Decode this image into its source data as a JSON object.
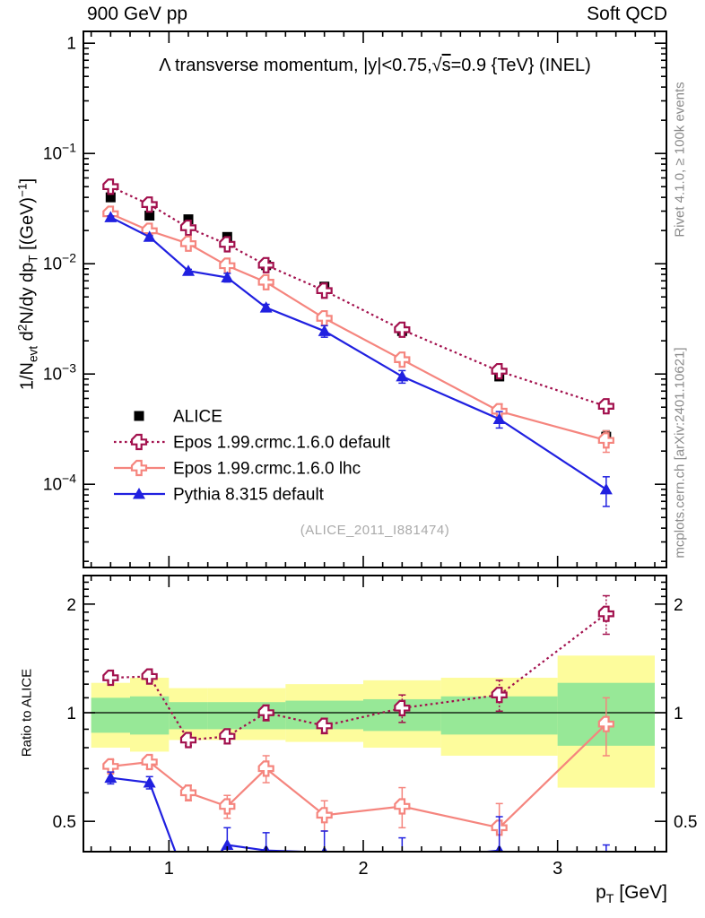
{
  "header": {
    "left": "900 GeV pp",
    "right": "Soft QCD"
  },
  "side_notes": {
    "top": "Rivet 4.1.0, ≥ 100k events",
    "bottom": "mcplots.cern.ch [arXiv:2401.10621]"
  },
  "watermark": "(ALICE_2011_I881474)",
  "titles": {
    "plot": [
      {
        "t": "Λ transverse momentum, |y|<0.75,"
      },
      {
        "t": "√"
      },
      {
        "t": "s",
        "over": true
      },
      {
        "t": "=0.9 {TeV} (INEL)"
      }
    ],
    "y_axis": [
      {
        "t": "1/N"
      },
      {
        "t": "evt",
        "sub": true
      },
      {
        "t": "  d"
      },
      {
        "t": "2",
        "sup": true
      },
      {
        "t": "N/dy dp"
      },
      {
        "t": "T",
        "sub": true
      },
      {
        "t": " [(GeV)"
      },
      {
        "t": "−1",
        "sup": true
      },
      {
        "t": "]"
      }
    ],
    "x_axis": [
      {
        "t": "p"
      },
      {
        "t": "T",
        "sub": true
      },
      {
        "t": " [GeV]"
      }
    ],
    "ratio_y_axis": "Ratio to ALICE"
  },
  "chart_data": {
    "type": "line",
    "title": "Λ transverse momentum, |y|<0.75, √s=0.9 TeV (INEL)",
    "xlabel": "p_T [GeV]",
    "ylabel": "1/N_evt d2N/dy dp_T [(GeV)^-1]",
    "ratio_ylabel": "Ratio to ALICE",
    "x_range": [
      0.56,
      3.56
    ],
    "main_y_range": [
      1.76e-05,
      1.28
    ],
    "ratio_y_range": [
      0.412,
      2.4
    ],
    "x_major_ticks": [
      1,
      2,
      3
    ],
    "x_tick_labels": [
      "1",
      "2",
      "3"
    ],
    "x_minor_from": 0.6,
    "x_minor_to": 3.5,
    "x_minor_step": 0.1,
    "main_y_major_ticks": [
      {
        "v": 1,
        "label": "1"
      },
      {
        "v": 0.1,
        "label": "10^-1"
      },
      {
        "v": 0.01,
        "label": "10^-2"
      },
      {
        "v": 0.001,
        "label": "10^-3"
      },
      {
        "v": 0.0001,
        "label": "10^-4"
      }
    ],
    "ratio_y_major_ticks": [
      {
        "v": 2,
        "label": "2"
      },
      {
        "v": 1,
        "label": "1"
      },
      {
        "v": 0.5,
        "label": "0.5"
      }
    ],
    "ratio_y_minor_ticks": [
      0.6,
      0.7,
      0.8,
      0.9,
      1.1,
      1.2,
      1.3,
      1.4,
      1.5,
      1.6,
      1.7,
      1.8,
      1.9,
      2.1,
      2.2,
      2.3
    ],
    "x": [
      0.7,
      0.9,
      1.1,
      1.3,
      1.5,
      1.8,
      2.2,
      2.7,
      3.25
    ],
    "series": [
      {
        "id": "alice",
        "label": "ALICE",
        "marker": "square",
        "color": "#000000",
        "line": "none",
        "values": [
          0.04,
          0.0273,
          0.0253,
          0.0175,
          0.0097,
          0.0062,
          0.00245,
          0.00095,
          0.00027
        ],
        "err_frac": [
          0.03,
          0.03,
          0.03,
          0.03,
          0.03,
          0.04,
          0.05,
          0.08,
          0.13
        ],
        "ratio": null,
        "ratio_err": null
      },
      {
        "id": "epos_default",
        "label": "Epos 1.99.crmc.1.6.0 default",
        "marker": "cross",
        "color": "#a2104d",
        "line": "dotted",
        "values": [
          0.05,
          0.0344,
          0.0212,
          0.015,
          0.0097,
          0.0057,
          0.00252,
          0.00106,
          0.00051
        ],
        "err_frac": [
          0.03,
          0.025,
          0.025,
          0.03,
          0.03,
          0.035,
          0.05,
          0.07,
          0.11
        ],
        "ratio": [
          1.25,
          1.26,
          0.84,
          0.86,
          1.0,
          0.92,
          1.03,
          1.12,
          1.88
        ],
        "ratio_err": [
          0.035,
          0.035,
          0.03,
          0.04,
          0.05,
          0.045,
          0.09,
          0.11,
          0.23
        ]
      },
      {
        "id": "epos_lhc",
        "label": "Epos 1.99.crmc.1.6.0 lhc",
        "marker": "cross",
        "color": "#f5857e",
        "line": "solid",
        "values": [
          0.0284,
          0.0199,
          0.0152,
          0.0096,
          0.0068,
          0.0032,
          0.00135,
          0.00046,
          0.00025
        ],
        "err_frac": [
          0.04,
          0.035,
          0.035,
          0.04,
          0.06,
          0.05,
          0.07,
          0.16,
          0.22
        ],
        "ratio": [
          0.71,
          0.73,
          0.6,
          0.55,
          0.7,
          0.52,
          0.55,
          0.48,
          0.93
        ],
        "ratio_err": [
          0.03,
          0.03,
          0.03,
          0.04,
          0.06,
          0.05,
          0.07,
          0.08,
          0.17
        ]
      },
      {
        "id": "pythia",
        "label": "Pythia 8.315 default",
        "marker": "triangle",
        "color": "#2020e0",
        "line": "solid",
        "values": [
          0.0264,
          0.0175,
          0.0086,
          0.0075,
          0.004,
          0.00245,
          0.00095,
          0.00039,
          9e-05
        ],
        "err_frac": [
          0.025,
          0.025,
          0.035,
          0.09,
          0.07,
          0.12,
          0.13,
          0.17,
          0.3
        ],
        "ratio": [
          0.66,
          0.64,
          0.33,
          0.43,
          0.415,
          0.41,
          0.39,
          0.415,
          0.33
        ],
        "ratio_err": [
          0.025,
          0.025,
          0.04,
          0.05,
          0.05,
          0.06,
          0.06,
          0.1,
          0.1
        ]
      }
    ],
    "bands": {
      "edges": [
        0.6,
        0.8,
        1.0,
        1.2,
        1.4,
        1.6,
        2.0,
        2.4,
        3.0,
        3.5
      ],
      "yellow_hi": [
        1.21,
        1.25,
        1.17,
        1.17,
        1.17,
        1.2,
        1.23,
        1.25,
        1.44
      ],
      "yellow_lo": [
        0.8,
        0.78,
        0.84,
        0.84,
        0.84,
        0.83,
        0.8,
        0.76,
        0.62
      ],
      "green_hi": [
        1.1,
        1.11,
        1.07,
        1.07,
        1.07,
        1.08,
        1.09,
        1.11,
        1.21
      ],
      "green_lo": [
        0.88,
        0.87,
        0.9,
        0.9,
        0.9,
        0.9,
        0.89,
        0.87,
        0.81
      ],
      "yellow_color": "#fdfc9c",
      "green_color": "#97e897"
    },
    "ref_line": 1,
    "legend_position": "left-middle",
    "grid": false
  }
}
